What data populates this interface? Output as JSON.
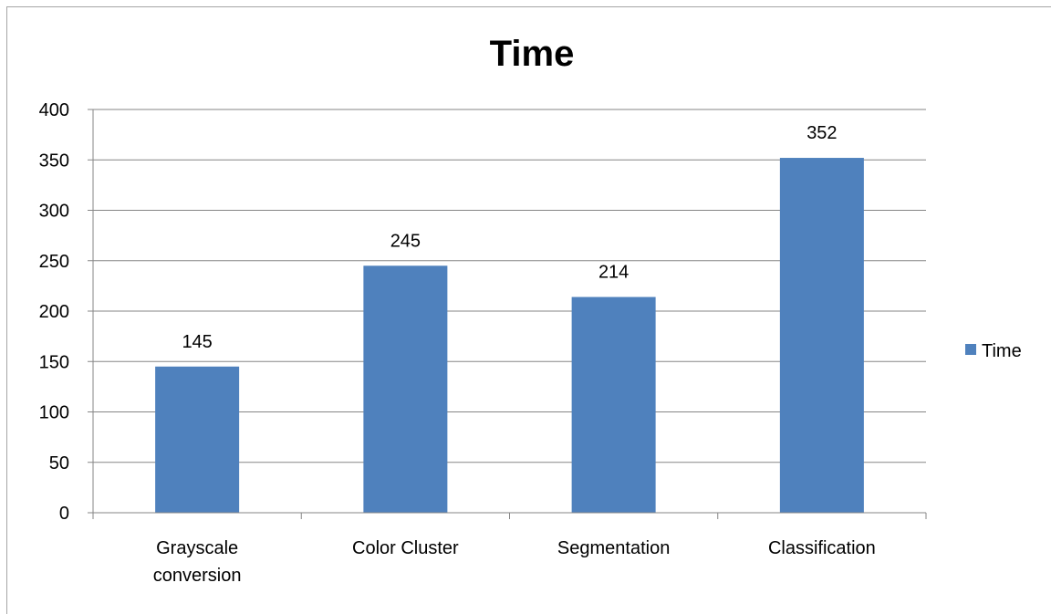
{
  "chart_data": {
    "type": "bar",
    "title": "Time",
    "categories": [
      "Grayscale conversion",
      "Color Cluster",
      "Segmentation",
      "Classification"
    ],
    "category_lines": [
      [
        "Grayscale",
        "conversion"
      ],
      [
        "Color Cluster"
      ],
      [
        "Segmentation"
      ],
      [
        "Classification"
      ]
    ],
    "series": [
      {
        "name": "Time",
        "values": [
          145,
          245,
          214,
          352
        ],
        "color": "#4F81BD"
      }
    ],
    "ylim": [
      0,
      400
    ],
    "yticks": [
      0,
      50,
      100,
      150,
      200,
      250,
      300,
      350,
      400
    ],
    "grid": true,
    "data_labels": true,
    "legend": "right"
  }
}
